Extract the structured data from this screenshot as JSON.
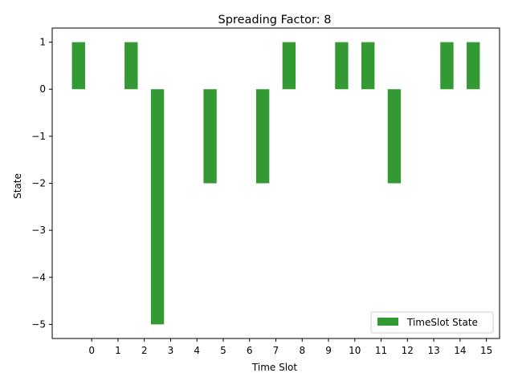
{
  "chart_data": {
    "type": "bar",
    "title": "Spreading Factor: 8",
    "xlabel": "Time Slot",
    "ylabel": "State",
    "x_tick_labels": [
      "0",
      "1",
      "2",
      "3",
      "4",
      "5",
      "6",
      "7",
      "8",
      "9",
      "10",
      "11",
      "12",
      "13",
      "14",
      "15"
    ],
    "y_tick_labels": [
      "1",
      "0",
      "−1",
      "−2",
      "−3",
      "−4",
      "−5"
    ],
    "y_ticks": [
      1,
      0,
      -1,
      -2,
      -3,
      -4,
      -5
    ],
    "ylim": [
      -5.3,
      1.3
    ],
    "grid": false,
    "legend_position": "lower-right",
    "series": [
      {
        "name": "TimeSlot State",
        "color": "#339933",
        "bars": [
          {
            "x": -0.5,
            "value": 1
          },
          {
            "x": 1.5,
            "value": 1
          },
          {
            "x": 2.5,
            "value": -5
          },
          {
            "x": 4.5,
            "value": -2
          },
          {
            "x": 6.5,
            "value": -2
          },
          {
            "x": 7.5,
            "value": 1
          },
          {
            "x": 9.5,
            "value": 1
          },
          {
            "x": 10.5,
            "value": 1
          },
          {
            "x": 11.5,
            "value": -2
          },
          {
            "x": 13.5,
            "value": 1
          },
          {
            "x": 14.5,
            "value": 1
          }
        ]
      }
    ]
  }
}
